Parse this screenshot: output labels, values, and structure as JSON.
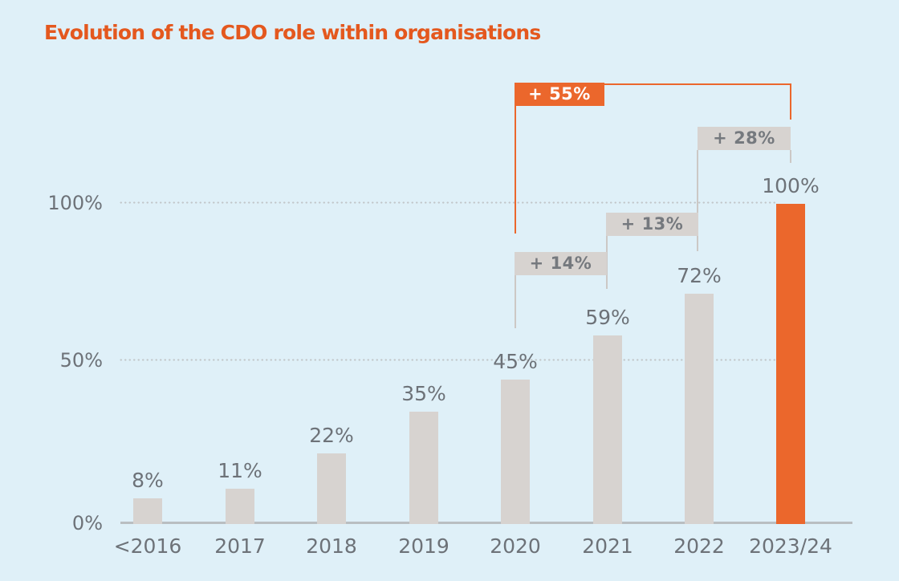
{
  "title": {
    "text": "Evolution of the CDO role within organisations",
    "color": "#e4581e"
  },
  "chart_data": {
    "type": "bar",
    "title": "Evolution of the CDO role within organisations",
    "categories": [
      "<2016",
      "2017",
      "2018",
      "2019",
      "2020",
      "2021",
      "2022",
      "2023/24"
    ],
    "values": [
      8,
      11,
      22,
      35,
      45,
      59,
      72,
      100
    ],
    "value_labels": [
      "8%",
      "11%",
      "22%",
      "35%",
      "45%",
      "59%",
      "72%",
      "100%"
    ],
    "y_ticks": [
      "0%",
      "50%",
      "100%"
    ],
    "ylim": [
      0,
      100
    ],
    "grid": "dotted horizontal lines at 50% and 100%",
    "legend": "none",
    "bar_color": "#d7d3d0",
    "highlight_color": "#eb672c",
    "highlight_index": 7,
    "highlight_category": "2023/24",
    "annotations": [
      {
        "label": "+ 55%",
        "from": "2020",
        "to": "2023/24",
        "highlight": true
      },
      {
        "label": "+ 28%",
        "from": "2022",
        "to": "2023/24",
        "highlight": false
      },
      {
        "label": "+ 13%",
        "from": "2021",
        "to": "2022",
        "highlight": false
      },
      {
        "label": "+ 14%",
        "from": "2020",
        "to": "2021",
        "highlight": false
      }
    ]
  }
}
